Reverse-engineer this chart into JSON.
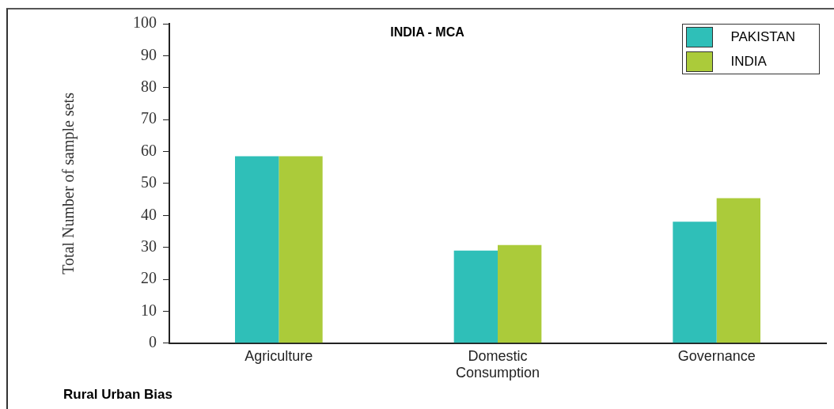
{
  "chart_data": {
    "type": "bar",
    "title": "INDIA - MCA",
    "ylabel": "Total Number of sample sets",
    "annotations": [
      "Rural Urban Bias"
    ],
    "categories": [
      "Agriculture",
      "Domestic\nConsumption",
      "Governance"
    ],
    "series": [
      {
        "name": "PAKISTAN",
        "color": "#2fbfb8",
        "values": [
          58.5,
          29,
          38
        ]
      },
      {
        "name": "INDIA",
        "color": "#abcb3a",
        "values": [
          58.5,
          30.7,
          45.4
        ]
      }
    ],
    "ylim": [
      0,
      100
    ],
    "yticks": [
      0,
      10,
      20,
      30,
      40,
      50,
      60,
      70,
      80,
      90,
      100
    ],
    "grid": false,
    "legend": "top right"
  }
}
